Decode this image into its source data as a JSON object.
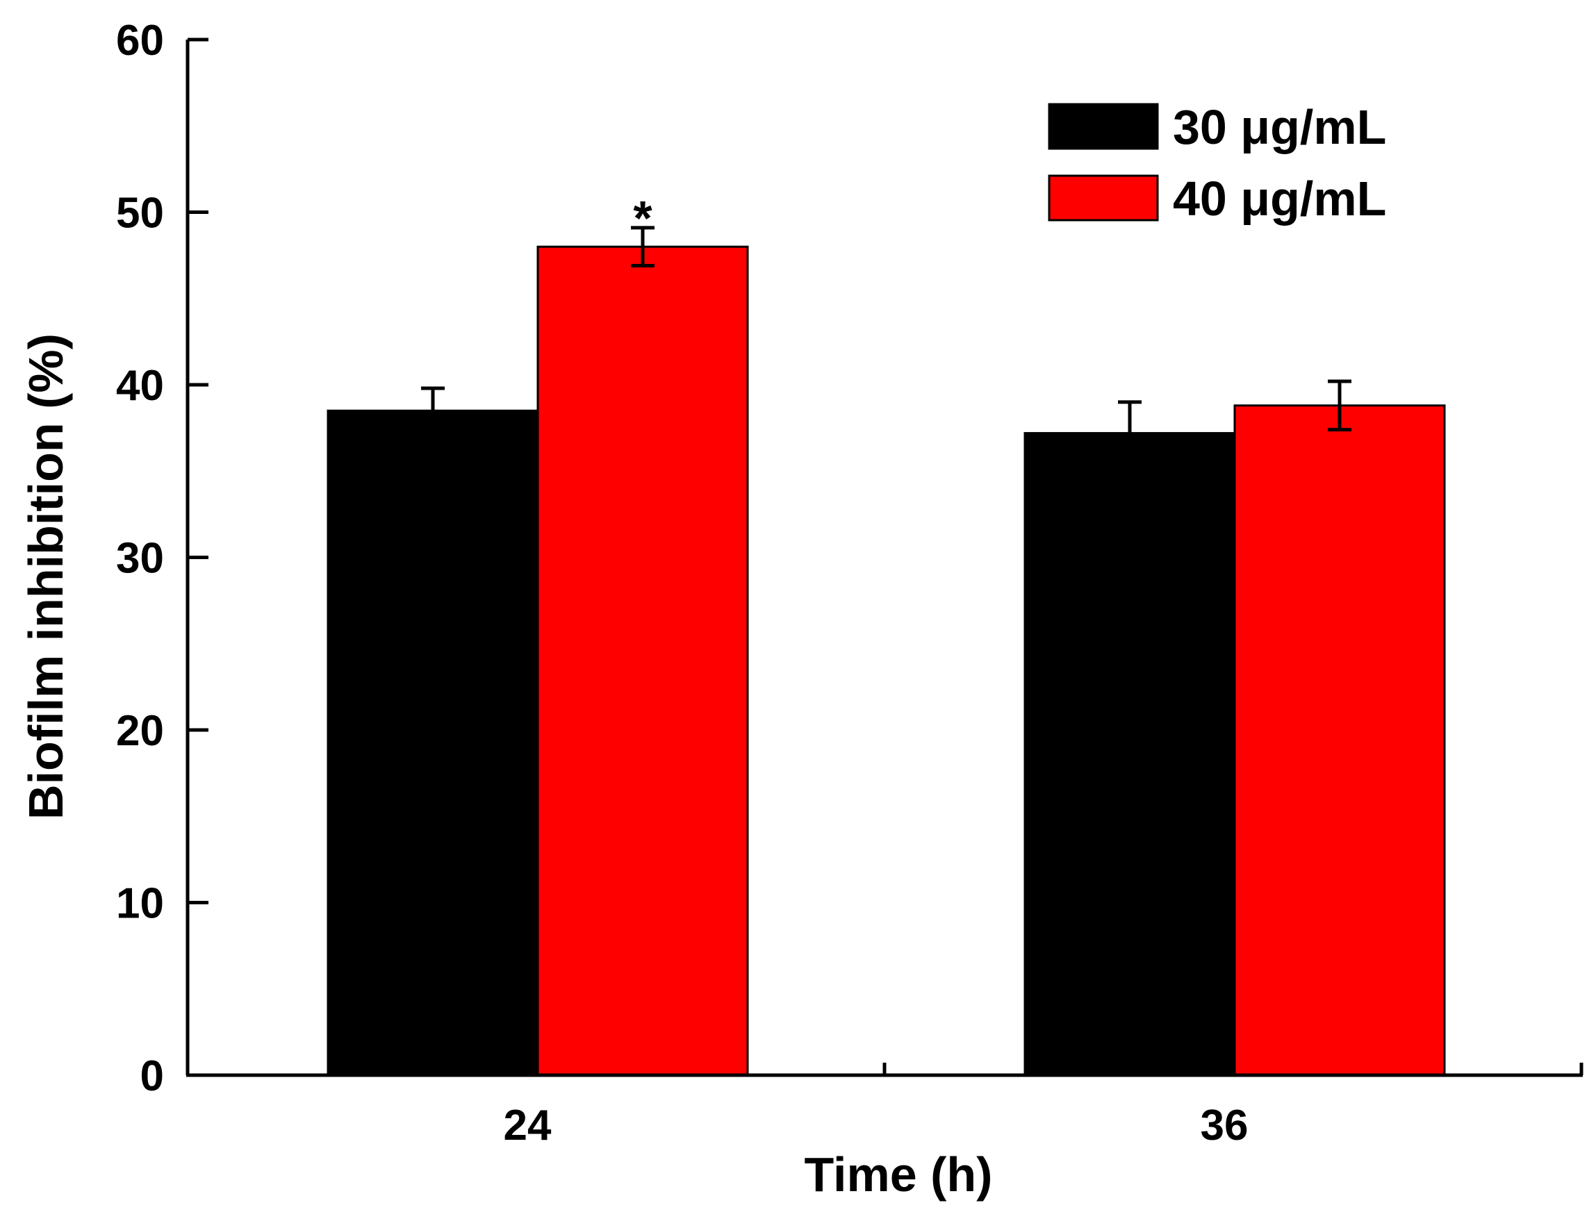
{
  "chart_data": {
    "type": "bar",
    "title": "",
    "xlabel": "Time (h)",
    "ylabel": "Biofilm inhibition (%)",
    "categories": [
      "24",
      "36"
    ],
    "ylim": [
      0,
      60
    ],
    "yticks": [
      "0",
      "10",
      "20",
      "30",
      "40",
      "50",
      "60"
    ],
    "grid": false,
    "legend_position": "top-right",
    "series": [
      {
        "name": "30 μg/mL",
        "color": "#000000",
        "values": [
          38.5,
          37.2
        ],
        "errors": [
          1.3,
          1.8
        ]
      },
      {
        "name": "40 μg/mL",
        "color": "#ff0000",
        "values": [
          48.0,
          38.8
        ],
        "errors": [
          1.1,
          1.4
        ]
      }
    ],
    "annotations": [
      {
        "category": "24",
        "series": "40 μg/mL",
        "text": "*"
      }
    ]
  }
}
